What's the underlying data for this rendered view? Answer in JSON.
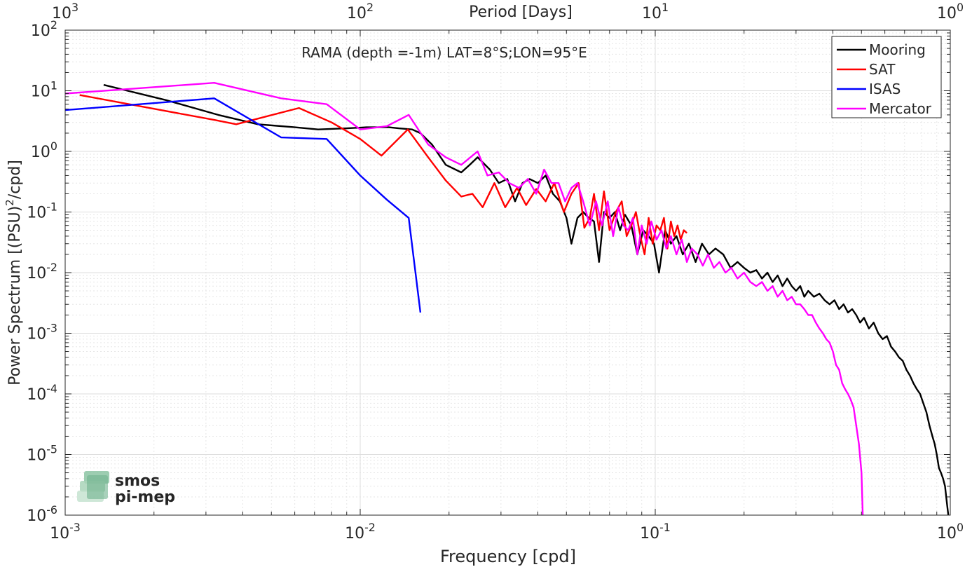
{
  "chart_data": {
    "type": "line",
    "title": "RAMA (depth =-1m) LAT=8°S;LON=95°E",
    "xlabel": "Frequency [cpd]",
    "ylabel": "Power Spectrum [(PSU)²/cpd]",
    "x2label": "Period [Days]",
    "xscale": "log",
    "yscale": "log",
    "xlim": [
      0.001,
      1
    ],
    "ylim": [
      1e-06,
      100
    ],
    "xticks": [
      {
        "value": 0.001,
        "base": "10",
        "exp": "-3"
      },
      {
        "value": 0.01,
        "base": "10",
        "exp": "-2"
      },
      {
        "value": 0.1,
        "base": "10",
        "exp": "-1"
      },
      {
        "value": 1,
        "base": "10",
        "exp": "0"
      }
    ],
    "x2ticks": [
      {
        "value": 1000,
        "base": "10",
        "exp": "3"
      },
      {
        "value": 100,
        "base": "10",
        "exp": "2"
      },
      {
        "value": 10,
        "base": "10",
        "exp": "1"
      },
      {
        "value": 1,
        "base": "10",
        "exp": "0"
      }
    ],
    "yticks": [
      {
        "value": 100,
        "base": "10",
        "exp": "2"
      },
      {
        "value": 10,
        "base": "10",
        "exp": "1"
      },
      {
        "value": 1,
        "base": "10",
        "exp": "0"
      },
      {
        "value": 0.1,
        "base": "10",
        "exp": "-1"
      },
      {
        "value": 0.01,
        "base": "10",
        "exp": "-2"
      },
      {
        "value": 0.001,
        "base": "10",
        "exp": "-3"
      },
      {
        "value": 0.0001,
        "base": "10",
        "exp": "-4"
      },
      {
        "value": 1e-05,
        "base": "10",
        "exp": "-5"
      },
      {
        "value": 1e-06,
        "base": "10",
        "exp": "-6"
      }
    ],
    "grid": true,
    "legend_position": "top-right",
    "series": [
      {
        "name": "Mooring",
        "color": "#000000",
        "x": [
          0.00135,
          0.0022,
          0.0033,
          0.0045,
          0.006,
          0.0072,
          0.009,
          0.0105,
          0.0125,
          0.0135,
          0.015,
          0.016,
          0.0175,
          0.0195,
          0.022,
          0.0235,
          0.025,
          0.0275,
          0.0295,
          0.0315,
          0.0335,
          0.0355,
          0.0375,
          0.04,
          0.0425,
          0.045,
          0.0475,
          0.05,
          0.052,
          0.0545,
          0.057,
          0.0595,
          0.062,
          0.0645,
          0.067,
          0.07,
          0.073,
          0.076,
          0.079,
          0.083,
          0.087,
          0.091,
          0.095,
          0.099,
          0.103,
          0.108,
          0.113,
          0.118,
          0.124,
          0.13,
          0.137,
          0.144,
          0.152,
          0.16,
          0.17,
          0.18,
          0.19,
          0.2,
          0.21,
          0.22,
          0.23,
          0.24,
          0.25,
          0.26,
          0.27,
          0.28,
          0.29,
          0.3,
          0.31,
          0.32,
          0.33,
          0.345,
          0.36,
          0.375,
          0.39,
          0.405,
          0.42,
          0.435,
          0.45,
          0.465,
          0.48,
          0.495,
          0.51,
          0.53,
          0.55,
          0.57,
          0.59,
          0.61,
          0.63,
          0.65,
          0.67,
          0.69,
          0.71,
          0.73,
          0.75,
          0.77,
          0.79,
          0.81,
          0.83,
          0.85,
          0.87,
          0.885,
          0.9,
          0.915,
          0.93,
          0.945,
          0.96,
          0.975,
          0.985
        ],
        "y": [
          12.5,
          7.0,
          4.0,
          2.8,
          2.5,
          2.3,
          2.4,
          2.5,
          2.5,
          2.4,
          2.3,
          2.0,
          1.3,
          0.6,
          0.45,
          0.6,
          0.8,
          0.5,
          0.3,
          0.35,
          0.15,
          0.3,
          0.35,
          0.3,
          0.4,
          0.2,
          0.15,
          0.08,
          0.03,
          0.08,
          0.1,
          0.08,
          0.07,
          0.015,
          0.1,
          0.08,
          0.1,
          0.05,
          0.09,
          0.06,
          0.02,
          0.05,
          0.04,
          0.03,
          0.01,
          0.05,
          0.03,
          0.04,
          0.02,
          0.03,
          0.015,
          0.03,
          0.02,
          0.025,
          0.02,
          0.012,
          0.015,
          0.012,
          0.01,
          0.011,
          0.008,
          0.01,
          0.007,
          0.009,
          0.006,
          0.008,
          0.006,
          0.005,
          0.006,
          0.004,
          0.005,
          0.004,
          0.0045,
          0.0035,
          0.003,
          0.0035,
          0.0025,
          0.003,
          0.0022,
          0.0025,
          0.002,
          0.0015,
          0.0018,
          0.0012,
          0.0015,
          0.001,
          0.0008,
          0.0009,
          0.0006,
          0.0005,
          0.0004,
          0.00035,
          0.00025,
          0.0002,
          0.00015,
          0.00012,
          0.0001,
          7e-05,
          5e-05,
          3e-05,
          2e-05,
          1.5e-05,
          1e-05,
          6e-06,
          5e-06,
          4e-06,
          3e-06,
          1.5e-06,
          1e-06
        ]
      },
      {
        "name": "SAT",
        "color": "#ff0000",
        "x": [
          0.00112,
          0.0032,
          0.0038,
          0.0062,
          0.008,
          0.01,
          0.0118,
          0.0145,
          0.017,
          0.0195,
          0.022,
          0.024,
          0.026,
          0.0285,
          0.031,
          0.034,
          0.0365,
          0.0395,
          0.0425,
          0.0455,
          0.049,
          0.052,
          0.055,
          0.0575,
          0.06,
          0.062,
          0.0645,
          0.067,
          0.07,
          0.0735,
          0.077,
          0.08,
          0.083,
          0.086,
          0.089,
          0.092,
          0.095,
          0.098,
          0.101,
          0.104,
          0.107,
          0.11,
          0.113,
          0.116,
          0.119,
          0.122,
          0.125,
          0.128
        ],
        "y": [
          8.5,
          3.3,
          2.8,
          5.2,
          3.0,
          1.6,
          0.85,
          2.3,
          0.8,
          0.33,
          0.18,
          0.2,
          0.12,
          0.3,
          0.12,
          0.25,
          0.13,
          0.24,
          0.15,
          0.3,
          0.1,
          0.2,
          0.3,
          0.055,
          0.08,
          0.2,
          0.05,
          0.22,
          0.05,
          0.1,
          0.15,
          0.04,
          0.06,
          0.1,
          0.04,
          0.02,
          0.08,
          0.03,
          0.06,
          0.05,
          0.08,
          0.025,
          0.07,
          0.04,
          0.06,
          0.035,
          0.05,
          0.045
        ]
      },
      {
        "name": "ISAS",
        "color": "#0000ff",
        "x": [
          0.001,
          0.0032,
          0.0054,
          0.0077,
          0.01,
          0.0123,
          0.0146,
          0.016
        ],
        "y": [
          4.8,
          7.5,
          1.7,
          1.6,
          0.4,
          0.16,
          0.08,
          0.0022
        ]
      },
      {
        "name": "Mercator",
        "color": "#ff00ff",
        "x": [
          0.001,
          0.0032,
          0.0054,
          0.0077,
          0.01,
          0.0123,
          0.0146,
          0.017,
          0.0195,
          0.022,
          0.025,
          0.027,
          0.0295,
          0.032,
          0.0345,
          0.037,
          0.0395,
          0.042,
          0.0445,
          0.047,
          0.0495,
          0.052,
          0.0545,
          0.057,
          0.06,
          0.063,
          0.066,
          0.069,
          0.072,
          0.075,
          0.078,
          0.081,
          0.084,
          0.087,
          0.09,
          0.0935,
          0.097,
          0.101,
          0.105,
          0.109,
          0.113,
          0.118,
          0.123,
          0.128,
          0.133,
          0.139,
          0.145,
          0.151,
          0.158,
          0.165,
          0.173,
          0.181,
          0.19,
          0.2,
          0.21,
          0.22,
          0.23,
          0.24,
          0.25,
          0.26,
          0.27,
          0.28,
          0.29,
          0.3,
          0.31,
          0.32,
          0.33,
          0.34,
          0.35,
          0.36,
          0.37,
          0.38,
          0.39,
          0.4,
          0.41,
          0.42,
          0.43,
          0.44,
          0.45,
          0.46,
          0.47,
          0.48,
          0.49,
          0.5,
          0.505
        ],
        "y": [
          9.0,
          13.5,
          7.5,
          6.0,
          2.3,
          2.6,
          4.0,
          1.3,
          0.8,
          0.6,
          1.0,
          0.4,
          0.45,
          0.3,
          0.25,
          0.35,
          0.2,
          0.5,
          0.3,
          0.3,
          0.15,
          0.25,
          0.3,
          0.15,
          0.06,
          0.15,
          0.06,
          0.15,
          0.04,
          0.12,
          0.06,
          0.05,
          0.08,
          0.02,
          0.06,
          0.03,
          0.07,
          0.035,
          0.05,
          0.025,
          0.04,
          0.02,
          0.035,
          0.015,
          0.025,
          0.02,
          0.013,
          0.02,
          0.012,
          0.015,
          0.01,
          0.012,
          0.008,
          0.01,
          0.007,
          0.006,
          0.007,
          0.005,
          0.006,
          0.004,
          0.005,
          0.0035,
          0.004,
          0.003,
          0.003,
          0.0025,
          0.002,
          0.002,
          0.0015,
          0.0012,
          0.001,
          0.0008,
          0.0007,
          0.0005,
          0.0003,
          0.00025,
          0.00015,
          0.00012,
          0.0001,
          8e-05,
          6e-05,
          3e-05,
          1.5e-05,
          5e-06,
          1e-06
        ]
      }
    ]
  },
  "logo": {
    "line1": "smos",
    "line2": "pi-mep",
    "color": "#6fb38e"
  }
}
